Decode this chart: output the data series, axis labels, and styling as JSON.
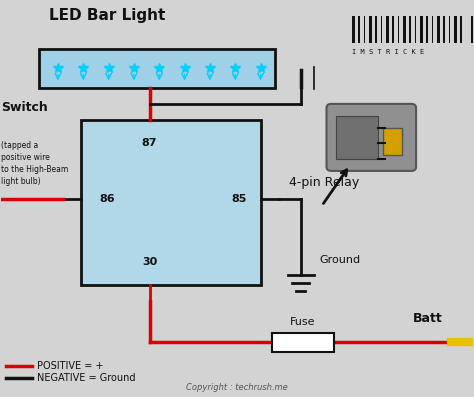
{
  "bg_color": "#d3d3d3",
  "title": "LED Bar Light",
  "relay_label": "4-pin Relay",
  "relay_pins": [
    "87",
    "86",
    "30",
    "85"
  ],
  "relay_fill": "#b0d8e8",
  "led_bar_fill": "#a0d0e8",
  "led_bar_border": "#111111",
  "led_color": "#00cfff",
  "fuse_fill": "#ffffff",
  "fuse_label": "Fuse",
  "battery_label": "Batt",
  "ground_label": "Ground",
  "switch_label": "Switch",
  "switch_note": "(tapped a\npositive wire\nto the High-Beam\nlight bulb)",
  "wire_red": "#dd0000",
  "wire_black": "#111111",
  "wire_yellow": "#e8c000",
  "positive_label": "POSITIVE = +",
  "negative_label": "NEGATIVE = Ground",
  "copyright": "Copyright : techrush.me",
  "barcode_text": "I M S T R I C K E",
  "font_color": "#111111"
}
